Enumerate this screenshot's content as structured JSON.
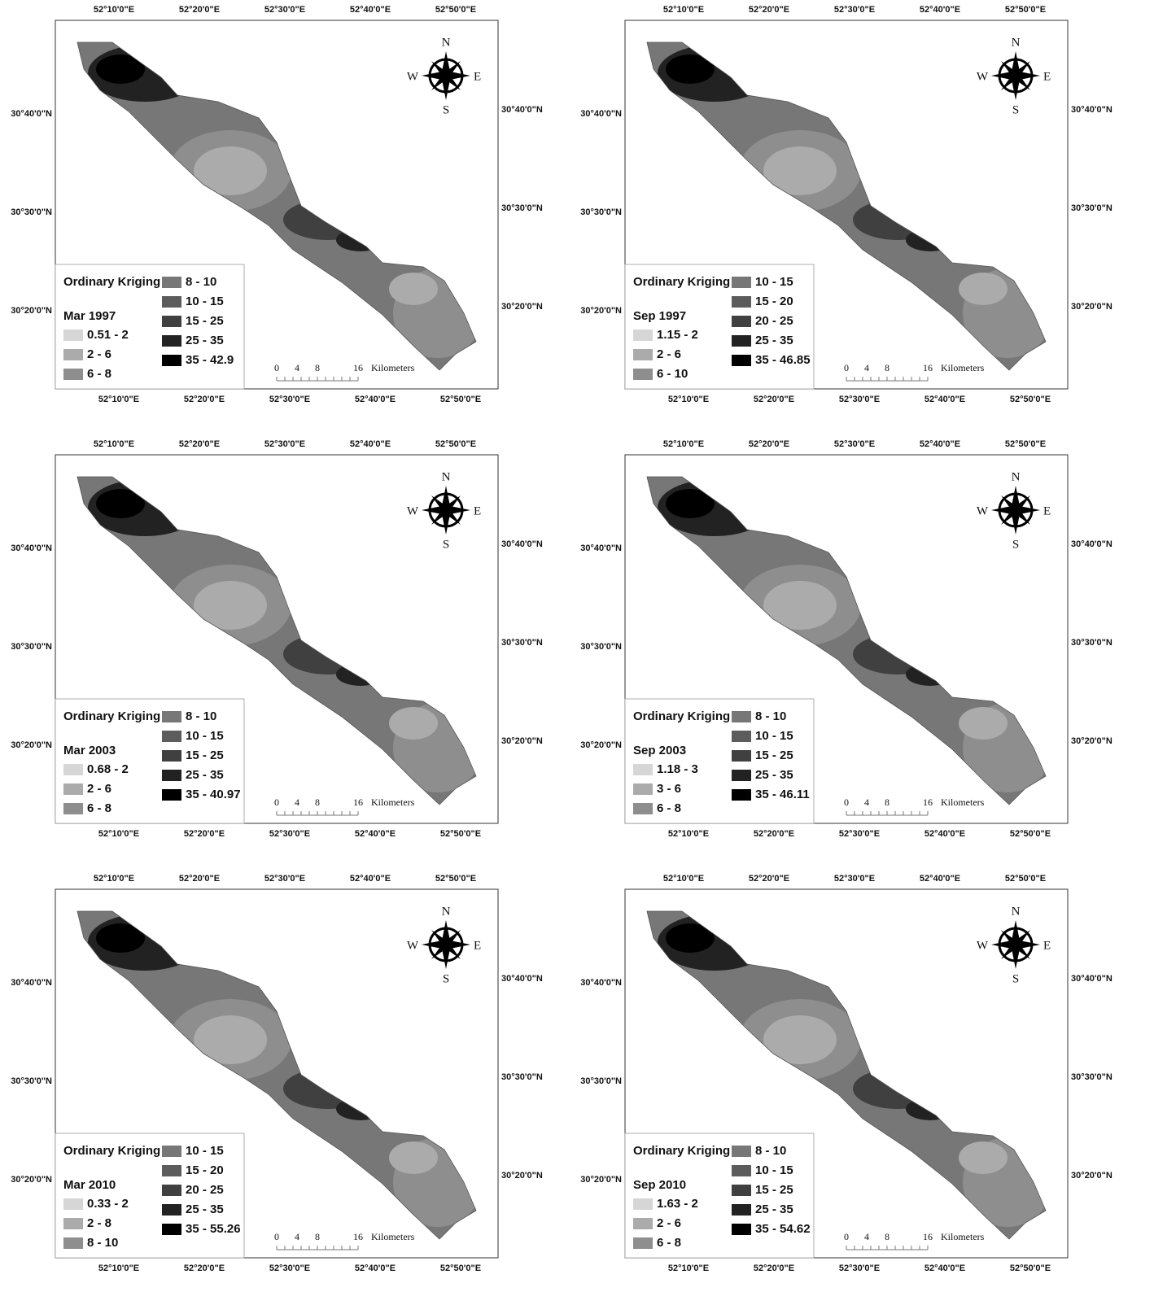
{
  "longitude_labels": [
    "52°10'0\"E",
    "52°20'0\"E",
    "52°30'0\"E",
    "52°40'0\"E",
    "52°50'0\"E"
  ],
  "latitude_labels": [
    "30°40'0\"N",
    "30°30'0\"N",
    "30°20'0\"N"
  ],
  "compass": {
    "n": "N",
    "e": "E",
    "s": "S",
    "w": "W"
  },
  "scale_bar": {
    "ticks": [
      "0",
      "4",
      "8",
      "16"
    ],
    "unit": "Kilometers"
  },
  "legend_title": "Ordinary Kriging",
  "class_colors": [
    "#d6d6d6",
    "#ababab",
    "#8e8e8e",
    "#777777",
    "#5c5c5c",
    "#404040",
    "#222222",
    "#000000"
  ],
  "panels": [
    {
      "period": "Mar 1997",
      "classes": [
        "0.51 - 2",
        "2 - 6",
        "6 - 8",
        "8 - 10",
        "10 - 15",
        "15 - 25",
        "25 - 35",
        "35 - 42.9"
      ]
    },
    {
      "period": "Sep 1997",
      "classes": [
        "1.15 - 2",
        "2 - 6",
        "6 - 10",
        "10 - 15",
        "15 - 20",
        "20 - 25",
        "25 - 35",
        "35 - 46.85"
      ]
    },
    {
      "period": "Mar 2003",
      "classes": [
        "0.68 - 2",
        "2 - 6",
        "6 - 8",
        "8 - 10",
        "10 - 15",
        "15 - 25",
        "25 - 35",
        "35 - 40.97"
      ]
    },
    {
      "period": "Sep 2003",
      "classes": [
        "1.18 - 3",
        "3 - 6",
        "6 - 8",
        "8 - 10",
        "10 - 15",
        "15 - 25",
        "25 - 35",
        "35 - 46.11"
      ]
    },
    {
      "period": "Mar 2010",
      "classes": [
        "0.33 - 2",
        "2 - 8",
        "8 - 10",
        "10 - 15",
        "15 - 20",
        "20 - 25",
        "25 - 35",
        "35 - 55.26"
      ]
    },
    {
      "period": "Sep 2010",
      "classes": [
        "1.63 - 2",
        "2 - 6",
        "6 - 8",
        "8 - 10",
        "10 - 15",
        "15 - 25",
        "25 - 35",
        "35 - 54.62"
      ]
    }
  ]
}
